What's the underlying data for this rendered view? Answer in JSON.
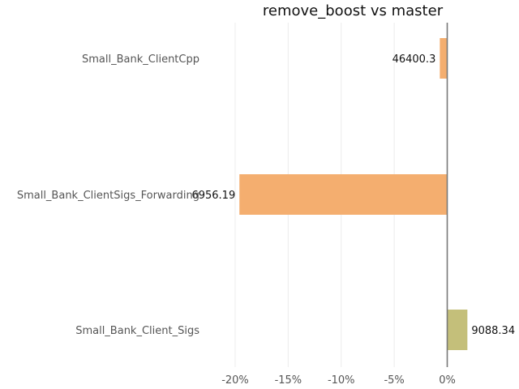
{
  "chart_data": {
    "type": "bar",
    "orientation": "horizontal",
    "title": "remove_boost vs master",
    "xlabel": "",
    "ylabel": "",
    "xlim": [
      -0.2,
      0.0
    ],
    "x_ticks": [
      -0.2,
      -0.15,
      -0.1,
      -0.05,
      0.0
    ],
    "x_tick_labels": [
      "-20%",
      "-15%",
      "-10%",
      "-5%",
      "0%"
    ],
    "grid": "vertical",
    "legend": "none",
    "categories": [
      "Small_Bank_ClientCpp",
      "Small_Bank_ClientSigs_Forwarding",
      "Small_Bank_Client_Sigs"
    ],
    "values": [
      -0.007,
      -0.196,
      0.019
    ],
    "value_labels": [
      "46400.3",
      "6956.19",
      "9088.34"
    ],
    "colors": [
      "#f4ae6f",
      "#f4ae6f",
      "#c4bf7a"
    ]
  }
}
